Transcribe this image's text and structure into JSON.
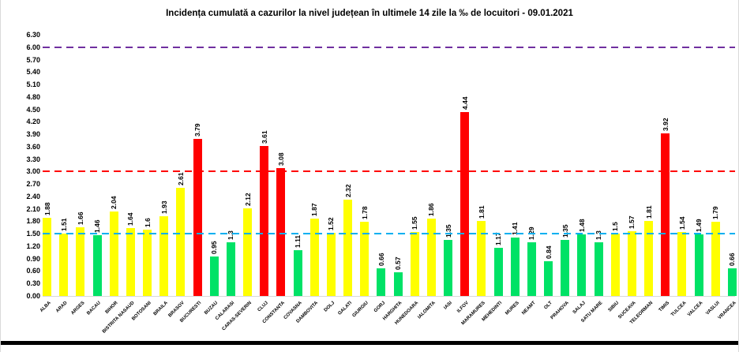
{
  "window": {
    "bottom_edge_color": "#000000",
    "background": "#ffffff"
  },
  "chart_data": {
    "type": "bar",
    "title": "Incidența cumulată a cazurilor la nivel județean în ultimele 14 zile la ‰ de locuitori - 09.01.2021",
    "categories": [
      "ALBA",
      "ARAD",
      "ARGES",
      "BACAU",
      "BIHOR",
      "BISTRITA NASAUD",
      "BOTOSANI",
      "BRAILA",
      "BRASOV",
      "BUCURESTI",
      "BUZAU",
      "CALARASI",
      "CARAS-SEVERIN",
      "CLUJ",
      "CONSTANTA",
      "COVASNA",
      "DAMBOVITA",
      "DOLJ",
      "GALATI",
      "GIURGIU",
      "GORJ",
      "HARGHITA",
      "HUNEDOARA",
      "IALOMITA",
      "IASI",
      "ILFOV",
      "MARAMURES",
      "MEHEDINTI",
      "MURES",
      "NEAMT",
      "OLT",
      "PRAHOVA",
      "SALAJ",
      "SATU MARE",
      "SIBIU",
      "SUCEAVA",
      "TELEORMAN",
      "TIMIS",
      "TULCEA",
      "VALCEA",
      "VASLUI",
      "VRANCEA"
    ],
    "values": [
      1.88,
      1.51,
      1.66,
      1.46,
      2.04,
      1.64,
      1.6,
      1.93,
      2.61,
      3.79,
      0.95,
      1.3,
      2.12,
      3.61,
      3.08,
      1.11,
      1.87,
      1.52,
      2.32,
      1.78,
      0.66,
      0.57,
      1.55,
      1.86,
      1.35,
      4.44,
      1.81,
      1.17,
      1.41,
      1.29,
      0.84,
      1.35,
      1.48,
      1.3,
      1.5,
      1.57,
      1.81,
      3.92,
      1.54,
      1.49,
      1.79,
      0.66
    ],
    "value_labels": [
      "1.88",
      "1.51",
      "1.66",
      "1.46",
      "2.04",
      "1.64",
      "1.6",
      "1.93",
      "2.61",
      "3.79",
      "0.95",
      "1.3",
      "2.12",
      "3.61",
      "3.08",
      "1.11",
      "1.87",
      "1.52",
      "2.32",
      "1.78",
      "0.66",
      "0.57",
      "1.55",
      "1.86",
      "1.35",
      "4.44",
      "1.81",
      "1.17",
      "1.41",
      "1.29",
      "0.84",
      "1.35",
      "1.48",
      "1.3",
      "1.5",
      "1.57",
      "1.81",
      "3.92",
      "1.54",
      "1.49",
      "1.79",
      "0.66"
    ],
    "ylim": [
      0,
      6.3
    ],
    "ytick_step": 0.3,
    "grid": false,
    "legend": false,
    "colors": {
      "low": "#00E266",
      "mid": "#FFFF00",
      "high": "#FF0000"
    },
    "color_thresholds": {
      "mid_min": 1.5,
      "high_min": 3.0
    },
    "reference_lines": [
      {
        "value": 6.0,
        "color": "#7030A0"
      },
      {
        "value": 3.0,
        "color": "#FF0000"
      },
      {
        "value": 1.5,
        "color": "#00B0F0"
      }
    ]
  }
}
